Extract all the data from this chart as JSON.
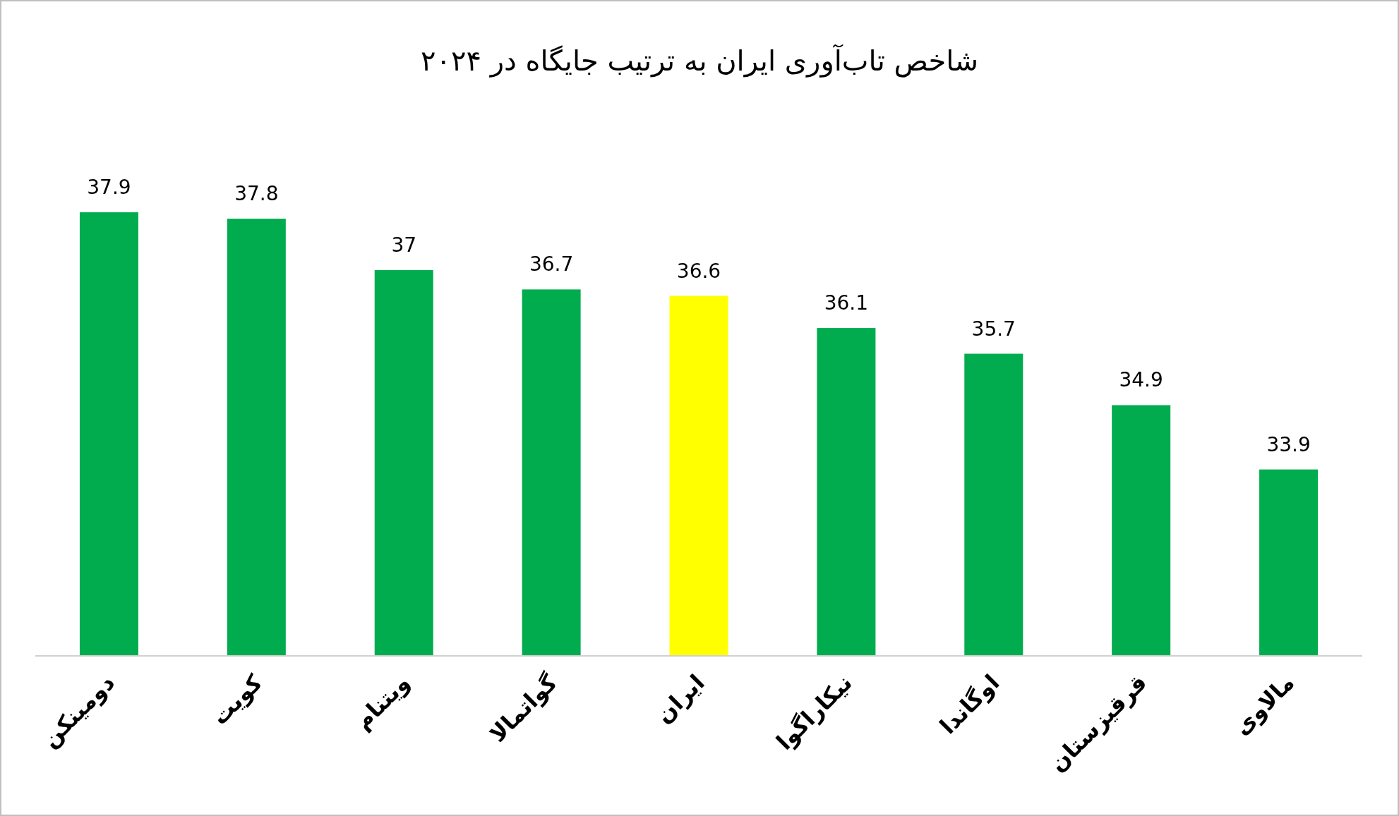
{
  "chart_data": {
    "type": "bar",
    "title": "شاخص تاب‌آوری ایران به ترتیب جایگاه در ۲۰۲۴",
    "categories": [
      "دومینکن",
      "کویت",
      "ویتنام",
      "گواتمالا",
      "ایران",
      "نیکاراگوا",
      "اوگاندا",
      "قرقیزستان",
      "مالاوی"
    ],
    "values": [
      37.9,
      37.8,
      37,
      36.7,
      36.6,
      36.1,
      35.7,
      34.9,
      33.9
    ],
    "colors": [
      "#00ac4e",
      "#00ac4e",
      "#00ac4e",
      "#00ac4e",
      "#ffff00",
      "#00ac4e",
      "#00ac4e",
      "#00ac4e",
      "#00ac4e"
    ],
    "ylim": [
      31,
      37.9
    ],
    "data_labels": true,
    "tick_labels": "x"
  }
}
